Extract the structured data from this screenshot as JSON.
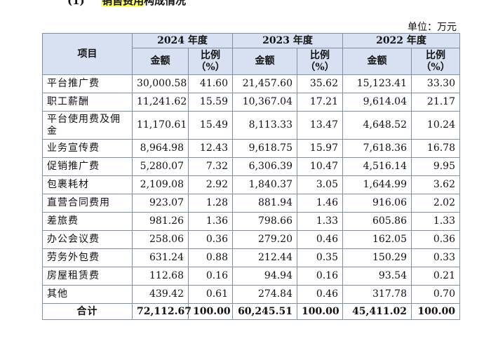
{
  "heading": {
    "prefix": "(1)",
    "highlight": "销售费用",
    "suffix": "构成情况"
  },
  "unit_label": "单位：万元",
  "table": {
    "item_header": "项目",
    "years": [
      "2024 年度",
      "2023 年度",
      "2022 年度"
    ],
    "amount_header": "金额",
    "ratio_header_line1": "比例",
    "ratio_header_line2": "（%）",
    "rows": [
      {
        "name": "平台推广费",
        "v": [
          "30,000.58",
          "41.60",
          "21,457.60",
          "35.62",
          "15,123.41",
          "33.30"
        ]
      },
      {
        "name": "职工薪酬",
        "v": [
          "11,241.62",
          "15.59",
          "10,367.04",
          "17.21",
          "9,614.04",
          "21.17"
        ]
      },
      {
        "name": "平台使用费及佣金",
        "v": [
          "11,170.61",
          "15.49",
          "8,113.33",
          "13.47",
          "4,648.52",
          "10.24"
        ]
      },
      {
        "name": "业务宣传费",
        "v": [
          "8,964.98",
          "12.43",
          "9,618.75",
          "15.97",
          "7,618.36",
          "16.78"
        ]
      },
      {
        "name": "促销推广费",
        "v": [
          "5,280.07",
          "7.32",
          "6,306.39",
          "10.47",
          "4,516.14",
          "9.95"
        ]
      },
      {
        "name": "包裹耗材",
        "v": [
          "2,109.08",
          "2.92",
          "1,840.37",
          "3.05",
          "1,644.99",
          "3.62"
        ]
      },
      {
        "name": "直营合同费用",
        "v": [
          "923.07",
          "1.28",
          "881.94",
          "1.46",
          "916.06",
          "2.02"
        ]
      },
      {
        "name": "差旅费",
        "v": [
          "981.26",
          "1.36",
          "798.66",
          "1.33",
          "605.86",
          "1.33"
        ]
      },
      {
        "name": "办公会议费",
        "v": [
          "258.06",
          "0.36",
          "279.20",
          "0.46",
          "162.05",
          "0.36"
        ]
      },
      {
        "name": "劳务外包费",
        "v": [
          "631.24",
          "0.88",
          "212.44",
          "0.35",
          "150.29",
          "0.33"
        ]
      },
      {
        "name": "房屋租赁费",
        "v": [
          "112.68",
          "0.16",
          "94.94",
          "0.16",
          "93.54",
          "0.21"
        ]
      },
      {
        "name": "其他",
        "v": [
          "439.42",
          "0.61",
          "274.84",
          "0.46",
          "317.78",
          "0.70"
        ]
      }
    ],
    "total": {
      "name": "合计",
      "v": [
        "72,112.67",
        "100.00",
        "60,245.51",
        "100.00",
        "45,411.02",
        "100.00"
      ]
    }
  }
}
